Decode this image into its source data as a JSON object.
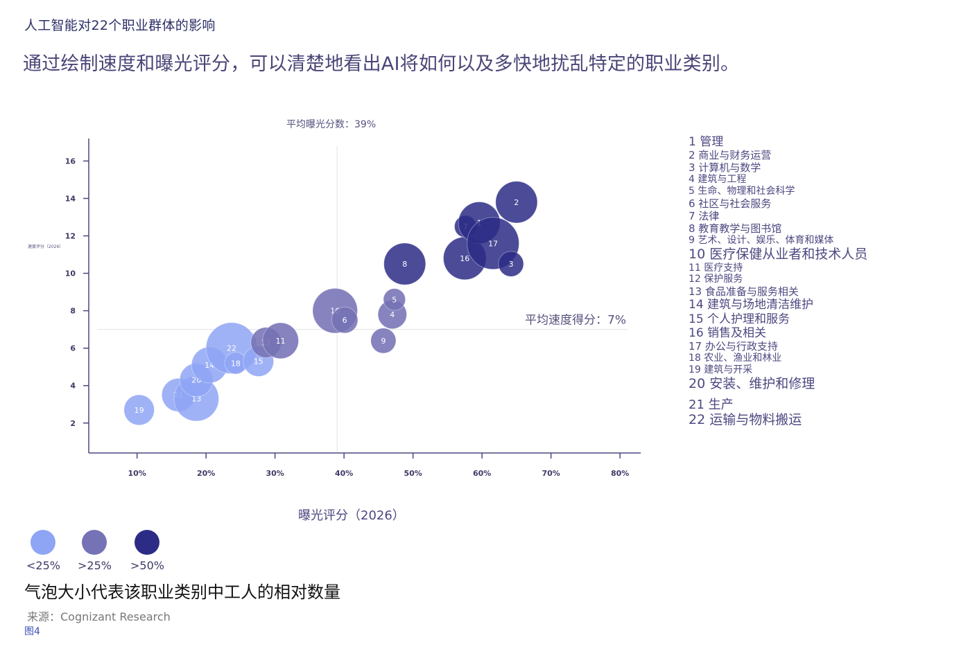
{
  "title": "人工智能对22个职业群体的影响",
  "subtitle": "通过绘制速度和曝光评分，可以清楚地看出AI将如何以及多快地扰乱特定的职业类别。",
  "avg_exposure_label": "平均曝光分数：39%",
  "avg_speed_label": "平均速度得分：7%",
  "size_note": "气泡大小代表该职业类别中工人的相对数量",
  "source": "来源：Cognizant Research",
  "figure_label": "图4",
  "colors": {
    "low": "#8ea4f5",
    "mid": "#7572b5",
    "high": "#2c2c86"
  },
  "size_legend": [
    {
      "label": "<25%",
      "color": "#8ea4f5"
    },
    {
      "label": ">25%",
      "color": "#7572b5"
    },
    {
      "label": ">50%",
      "color": "#2c2c86"
    }
  ],
  "legend": [
    "1 管理",
    "2 商业与财务运营",
    "3 计算机与数学",
    "4 建筑与工程",
    "5 生命、物理和社会科学",
    "6 社区与社会服务",
    "7 法律",
    "8 教育教学与图书馆",
    "9 艺术、设计、娱乐、体育和媒体",
    "10 医疗保健从业者和技术人员",
    "11 医疗支持",
    "12 保护服务",
    "13 食品准备与服务相关",
    "14 建筑与场地清洁维护",
    "15 个人护理和服务",
    "16 销售及相关",
    "17 办公与行政支持",
    "18 农业、渔业和林业",
    "19 建筑与开采",
    "20 安装、维护和修理",
    "21 生产",
    "22 运输与物料搬运"
  ],
  "chart_data": {
    "type": "scatter",
    "xlabel": "曝光评分（2026）",
    "ylabel": "速度评分（2026）",
    "xlim": [
      3,
      83
    ],
    "ylim": [
      0.4,
      17.2
    ],
    "x_ticks": [
      "10%",
      "20%",
      "30%",
      "40%",
      "50%",
      "60%",
      "70%",
      "80%"
    ],
    "x_tick_values": [
      10,
      20,
      30,
      40,
      50,
      60,
      70,
      80
    ],
    "y_ticks": [
      2,
      4,
      6,
      8,
      10,
      12,
      14,
      16
    ],
    "avg_exposure": 39,
    "avg_speed": 7,
    "points": [
      {
        "id": "19",
        "x": 10.3,
        "y": 2.7,
        "size": 0.8,
        "level": "low"
      },
      {
        "id": "21",
        "x": 16,
        "y": 3.5,
        "size": 1.0,
        "level": "low"
      },
      {
        "id": "13",
        "x": 18.6,
        "y": 3.3,
        "size": 2.0,
        "level": "low"
      },
      {
        "id": "20",
        "x": 18.6,
        "y": 4.3,
        "size": 1.0,
        "level": "low"
      },
      {
        "id": "14",
        "x": 20.5,
        "y": 5.1,
        "size": 1.2,
        "level": "low"
      },
      {
        "id": "22",
        "x": 23.7,
        "y": 6.0,
        "size": 2.7,
        "level": "low"
      },
      {
        "id": "18",
        "x": 24.3,
        "y": 5.2,
        "size": 0.35,
        "level": "low"
      },
      {
        "id": "15",
        "x": 27.6,
        "y": 5.3,
        "size": 0.8,
        "level": "low"
      },
      {
        "id": "12",
        "x": 28.7,
        "y": 6.3,
        "size": 0.8,
        "level": "mid"
      },
      {
        "id": "11",
        "x": 30.8,
        "y": 6.4,
        "size": 1.2,
        "level": "mid"
      },
      {
        "id": "10",
        "x": 38.7,
        "y": 8.0,
        "size": 2.0,
        "level": "mid"
      },
      {
        "id": "6",
        "x": 40.1,
        "y": 7.5,
        "size": 0.55,
        "level": "mid"
      },
      {
        "id": "9",
        "x": 45.7,
        "y": 6.4,
        "size": 0.5,
        "level": "mid"
      },
      {
        "id": "4",
        "x": 47.0,
        "y": 7.8,
        "size": 0.7,
        "level": "mid"
      },
      {
        "id": "5",
        "x": 47.3,
        "y": 8.6,
        "size": 0.35,
        "level": "mid"
      },
      {
        "id": "8",
        "x": 48.8,
        "y": 10.5,
        "size": 1.7,
        "level": "high"
      },
      {
        "id": "16",
        "x": 57.5,
        "y": 10.8,
        "size": 1.8,
        "level": "high"
      },
      {
        "id": "7",
        "x": 57.6,
        "y": 12.5,
        "size": 0.35,
        "level": "high"
      },
      {
        "id": "1",
        "x": 59.6,
        "y": 12.7,
        "size": 1.7,
        "level": "high"
      },
      {
        "id": "17",
        "x": 61.6,
        "y": 11.6,
        "size": 2.8,
        "level": "high"
      },
      {
        "id": "3",
        "x": 64.2,
        "y": 10.5,
        "size": 0.5,
        "level": "high"
      },
      {
        "id": "2",
        "x": 65.0,
        "y": 13.8,
        "size": 1.7,
        "level": "high"
      }
    ]
  }
}
